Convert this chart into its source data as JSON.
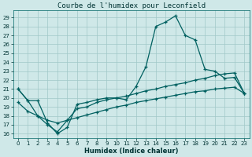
{
  "title": "Courbe de l'humidex pour Leconfield",
  "xlabel": "Humidex (Indice chaleur)",
  "bg_color": "#cfe8e8",
  "plot_bg_color": "#cfe8e8",
  "line_color": "#006060",
  "grid_color": "#a0c8c8",
  "xlim": [
    -0.5,
    23.5
  ],
  "ylim": [
    15.5,
    29.8
  ],
  "yticks": [
    16,
    17,
    18,
    19,
    20,
    21,
    22,
    23,
    24,
    25,
    26,
    27,
    28,
    29
  ],
  "xticks": [
    0,
    1,
    2,
    3,
    4,
    5,
    6,
    7,
    8,
    9,
    10,
    11,
    12,
    13,
    14,
    15,
    16,
    17,
    18,
    19,
    20,
    21,
    22,
    23
  ],
  "line1_x": [
    0,
    1,
    2,
    3,
    4,
    5,
    6,
    7,
    8,
    9,
    10,
    11,
    12,
    13,
    14,
    15,
    16,
    17,
    18,
    19,
    20,
    21,
    22,
    23
  ],
  "line1_y": [
    21.0,
    19.7,
    19.7,
    17.2,
    16.0,
    16.7,
    19.3,
    19.5,
    19.8,
    20.0,
    20.0,
    19.8,
    21.3,
    23.5,
    28.0,
    28.5,
    29.2,
    27.0,
    26.5,
    23.2,
    23.0,
    22.2,
    22.3,
    20.5
  ],
  "line2_x": [
    0,
    1,
    2,
    3,
    4,
    5,
    6,
    7,
    8,
    9,
    10,
    11,
    12,
    13,
    14,
    15,
    16,
    17,
    18,
    19,
    20,
    21,
    22,
    23
  ],
  "line2_y": [
    21.0,
    19.7,
    18.0,
    17.0,
    16.2,
    17.5,
    18.8,
    19.0,
    19.5,
    19.8,
    20.0,
    20.2,
    20.5,
    20.8,
    21.0,
    21.3,
    21.5,
    21.7,
    22.0,
    22.2,
    22.5,
    22.7,
    22.8,
    20.5
  ],
  "line3_x": [
    0,
    1,
    2,
    3,
    4,
    5,
    6,
    7,
    8,
    9,
    10,
    11,
    12,
    13,
    14,
    15,
    16,
    17,
    18,
    19,
    20,
    21,
    22,
    23
  ],
  "line3_y": [
    19.5,
    18.5,
    18.0,
    17.5,
    17.2,
    17.5,
    17.8,
    18.1,
    18.4,
    18.7,
    19.0,
    19.2,
    19.5,
    19.7,
    19.9,
    20.1,
    20.3,
    20.5,
    20.7,
    20.8,
    21.0,
    21.1,
    21.2,
    20.5
  ],
  "title_fontsize": 6.5,
  "tick_fontsize": 5,
  "xlabel_fontsize": 6
}
